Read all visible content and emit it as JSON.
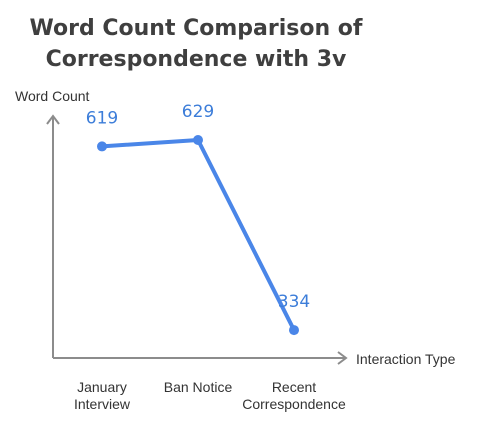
{
  "chart_data": {
    "type": "line",
    "title_lines": [
      "Word Count Comparison of",
      "Correspondence with 3v"
    ],
    "ylabel": "Word Count",
    "xlabel": "Interaction Type",
    "categories": [
      [
        "January",
        "Interview"
      ],
      [
        "Ban Notice"
      ],
      [
        "Recent",
        "Correspondence"
      ]
    ],
    "series": [
      {
        "values": [
          619,
          629,
          334
        ]
      }
    ],
    "data_labels": [
      "619",
      "629",
      "334"
    ],
    "ylim": [
      300,
      660
    ],
    "grid": false,
    "line_color": "#4a86e8",
    "label_color": "#3c7dd9",
    "axis_color": "#8c8c8c"
  }
}
